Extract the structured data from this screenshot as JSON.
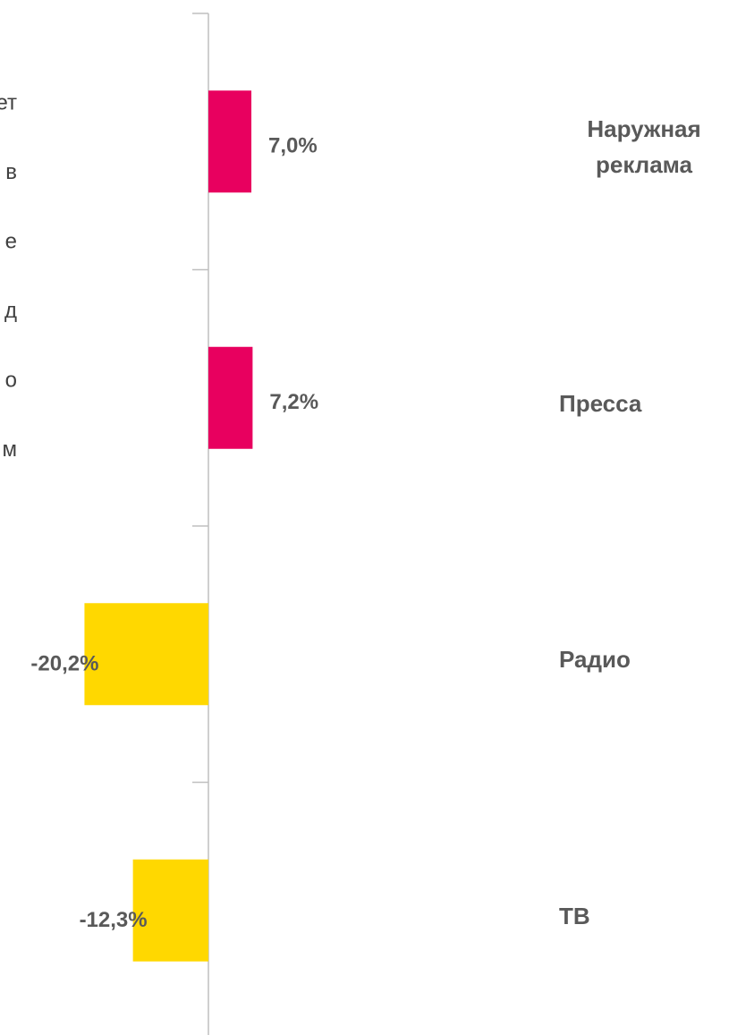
{
  "chart_data": {
    "type": "barh",
    "categories": [
      "Наружная реклама",
      "Пресса",
      "Радио",
      "ТВ"
    ],
    "values": [
      7.0,
      7.2,
      -20.2,
      -12.3
    ],
    "value_labels": [
      "7,0%",
      "7,2%",
      "-20,2%",
      "-12,3%"
    ],
    "colors": [
      "#e8005f",
      "#e8005f",
      "#ffd800",
      "#ffd800"
    ],
    "annotations": [
      "ет",
      "в",
      "е",
      "д",
      "о",
      "м"
    ]
  }
}
